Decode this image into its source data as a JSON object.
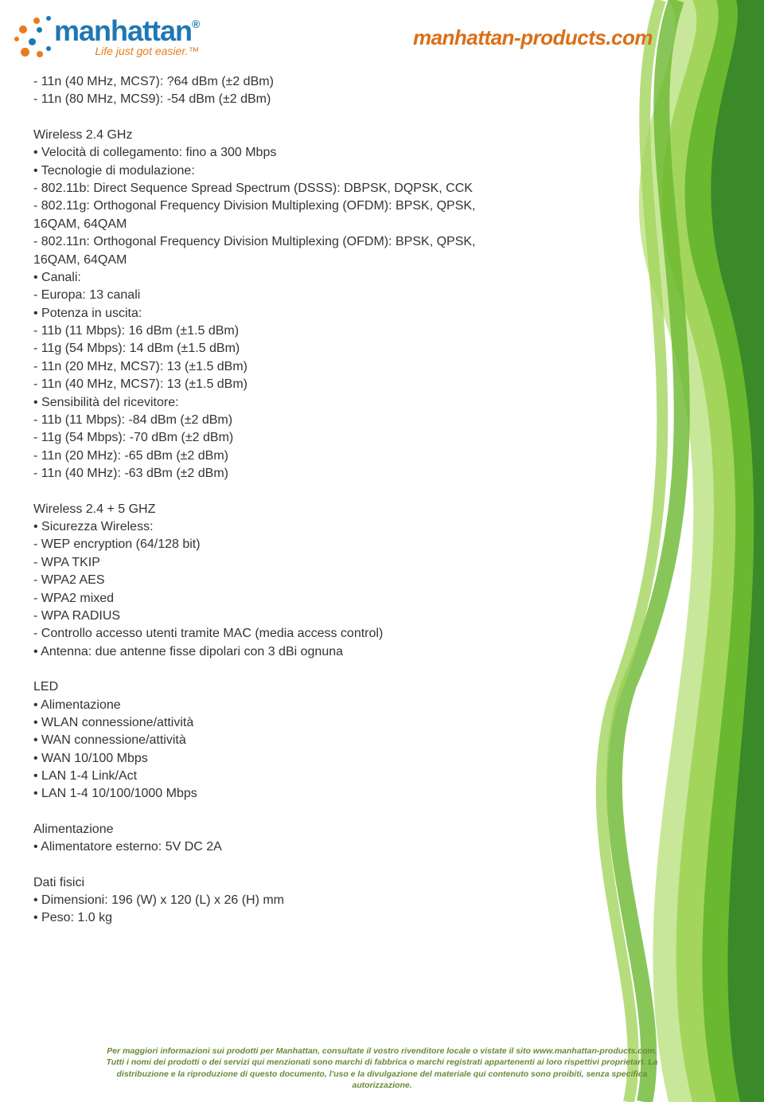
{
  "colors": {
    "brand_blue": "#1f77b4",
    "brand_orange": "#e87b1e",
    "tagline_orange": "#e87b1e",
    "url_orange": "#d96f18",
    "text": "#333333",
    "footer_text": "#6a8a3a",
    "swoosh_green1": "#3a8a2a",
    "swoosh_green2": "#6ab82f",
    "swoosh_green3": "#a3d55d",
    "swoosh_green4": "#c9e79a"
  },
  "logo": {
    "brand": "manhattan",
    "reg": "®",
    "tagline_pre": "Life just got easier.",
    "tagline_tm": "™"
  },
  "header": {
    "url": "manhattan-products.com"
  },
  "sections": [
    {
      "lines": [
        "- 11n (40 MHz, MCS7): ?64 dBm (±2 dBm)",
        "- 11n (80 MHz, MCS9): -54 dBm (±2 dBm)"
      ]
    },
    {
      "lines": [
        "Wireless 2.4 GHz",
        "• Velocità di collegamento: fino a 300 Mbps",
        "• Tecnologie di modulazione:",
        "- 802.11b: Direct Sequence Spread Spectrum (DSSS): DBPSK, DQPSK, CCK",
        "- 802.11g: Orthogonal Frequency Division Multiplexing (OFDM): BPSK, QPSK, 16QAM, 64QAM",
        "- 802.11n: Orthogonal Frequency Division Multiplexing (OFDM): BPSK, QPSK, 16QAM, 64QAM",
        "• Canali:",
        "- Europa: 13 canali",
        "• Potenza in uscita:",
        "- 11b (11 Mbps): 16 dBm (±1.5 dBm)",
        "- 11g (54 Mbps): 14 dBm (±1.5 dBm)",
        "- 11n (20 MHz, MCS7): 13 (±1.5 dBm)",
        "- 11n (40 MHz, MCS7): 13 (±1.5 dBm)",
        "• Sensibilità del ricevitore:",
        "- 11b (11 Mbps): -84 dBm (±2 dBm)",
        "- 11g (54 Mbps): -70 dBm (±2 dBm)",
        "- 11n (20 MHz): -65 dBm  (±2 dBm)",
        "- 11n (40 MHz): -63 dBm (±2 dBm)"
      ]
    },
    {
      "lines": [
        "Wireless 2.4 + 5 GHZ",
        "• Sicurezza Wireless:",
        "- WEP encryption (64/128 bit)",
        "- WPA TKIP",
        "- WPA2 AES",
        "- WPA2 mixed",
        "- WPA RADIUS",
        "- Controllo accesso utenti tramite MAC (media access control)",
        "• Antenna: due antenne fisse dipolari con 3 dBi ognuna"
      ]
    },
    {
      "lines": [
        "LED",
        "• Alimentazione",
        "• WLAN connessione/attività",
        "• WAN connessione/attività",
        "• WAN 10/100 Mbps",
        "• LAN 1-4 Link/Act",
        "• LAN 1-4 10/100/1000 Mbps"
      ]
    },
    {
      "lines": [
        "Alimentazione",
        "• Alimentatore esterno: 5V DC 2A"
      ]
    },
    {
      "lines": [
        "Dati fisici",
        "• Dimensioni: 196 (W) x 120 (L) x 26 (H) mm",
        "• Peso: 1.0 kg"
      ]
    }
  ],
  "footer": {
    "l1": "Per maggiori informazioni sui prodotti per Manhattan, consultate il vostro rivenditore locale o vistate il sito www.manhattan-products.com.",
    "l2": "Tutti i nomi dei prodotti o dei servizi qui menzionati sono marchi di fabbrica o marchi registrati appartenenti ai loro rispettivi proprietari. La",
    "l3": "distribuzione e la riproduzione di questo documento, l'uso e la divulgazione del materiale qui contenuto sono proibiti, senza specifica",
    "l4": "autorizzazione."
  }
}
